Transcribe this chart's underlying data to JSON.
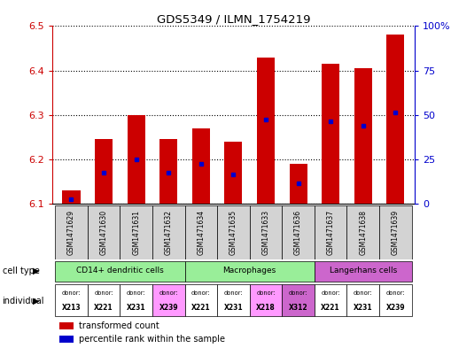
{
  "title": "GDS5349 / ILMN_1754219",
  "samples": [
    "GSM1471629",
    "GSM1471630",
    "GSM1471631",
    "GSM1471632",
    "GSM1471634",
    "GSM1471635",
    "GSM1471633",
    "GSM1471636",
    "GSM1471637",
    "GSM1471638",
    "GSM1471639"
  ],
  "bar_values": [
    6.13,
    6.245,
    6.3,
    6.245,
    6.27,
    6.24,
    6.43,
    6.19,
    6.415,
    6.405,
    6.48
  ],
  "bar_base": 6.1,
  "blue_values": [
    6.11,
    6.17,
    6.2,
    6.17,
    6.19,
    6.165,
    6.29,
    6.145,
    6.285,
    6.275,
    6.305
  ],
  "ylim_left": [
    6.1,
    6.5
  ],
  "ylim_right": [
    0,
    100
  ],
  "yticks_left": [
    6.1,
    6.2,
    6.3,
    6.4,
    6.5
  ],
  "yticks_right": [
    0,
    25,
    50,
    75,
    100
  ],
  "ytick_labels_right": [
    "0",
    "25",
    "50",
    "75",
    "100%"
  ],
  "bar_color": "#cc0000",
  "blue_color": "#0000cc",
  "cell_groups": [
    {
      "label": "CD14+ dendritic cells",
      "cols": [
        0,
        1,
        2,
        3
      ],
      "color": "#99ee99"
    },
    {
      "label": "Macrophages",
      "cols": [
        4,
        5,
        6,
        7
      ],
      "color": "#99ee99"
    },
    {
      "label": "Langerhans cells",
      "cols": [
        8,
        9,
        10
      ],
      "color": "#cc66cc"
    }
  ],
  "individuals": [
    {
      "donor": "X213",
      "col": 0,
      "color": "#ffffff"
    },
    {
      "donor": "X221",
      "col": 1,
      "color": "#ffffff"
    },
    {
      "donor": "X231",
      "col": 2,
      "color": "#ffffff"
    },
    {
      "donor": "X239",
      "col": 3,
      "color": "#ff99ff"
    },
    {
      "donor": "X221",
      "col": 4,
      "color": "#ffffff"
    },
    {
      "donor": "X231",
      "col": 5,
      "color": "#ffffff"
    },
    {
      "donor": "X218",
      "col": 6,
      "color": "#ff99ff"
    },
    {
      "donor": "X312",
      "col": 7,
      "color": "#cc66cc"
    },
    {
      "donor": "X221",
      "col": 8,
      "color": "#ffffff"
    },
    {
      "donor": "X231",
      "col": 9,
      "color": "#ffffff"
    },
    {
      "donor": "X239",
      "col": 10,
      "color": "#ffffff"
    }
  ],
  "legend_items": [
    {
      "label": "transformed count",
      "color": "#cc0000"
    },
    {
      "label": "percentile rank within the sample",
      "color": "#0000cc"
    }
  ],
  "bar_width": 0.55,
  "tick_color_left": "#cc0000",
  "tick_color_right": "#0000cc",
  "sample_bg": "#d3d3d3",
  "label_celltype": "cell type",
  "label_individual": "individual"
}
